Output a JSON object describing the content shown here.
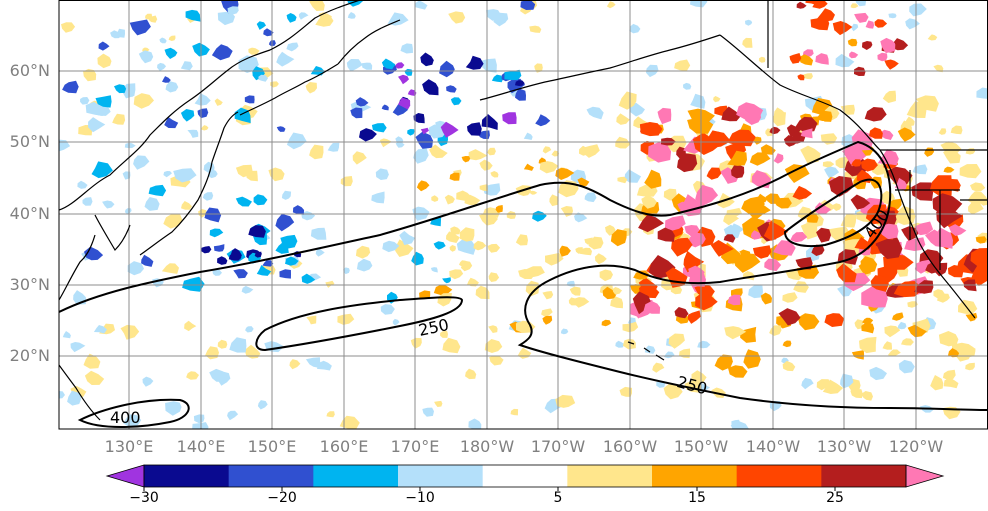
{
  "map": {
    "lat_labels": [
      "60°N",
      "50°N",
      "40°N",
      "30°N",
      "20°N"
    ],
    "lon_labels": [
      "130°E",
      "140°E",
      "150°E",
      "160°E",
      "170°E",
      "180°W",
      "170°W",
      "160°W",
      "150°W",
      "140°W",
      "130°W",
      "120°W"
    ],
    "contour_labels": [
      "250",
      "250",
      "400",
      "400"
    ]
  },
  "colorbar": {
    "colors": [
      "#a034e0",
      "#0a0a90",
      "#3050d0",
      "#00b4f0",
      "#b4e0fa",
      "#ffffff",
      "#ffe68c",
      "#ffa500",
      "#ff4500",
      "#b41e1e",
      "#ff78b4"
    ],
    "tick_labels": [
      "−30",
      "−20",
      "−10",
      "5",
      "15",
      "25"
    ]
  }
}
